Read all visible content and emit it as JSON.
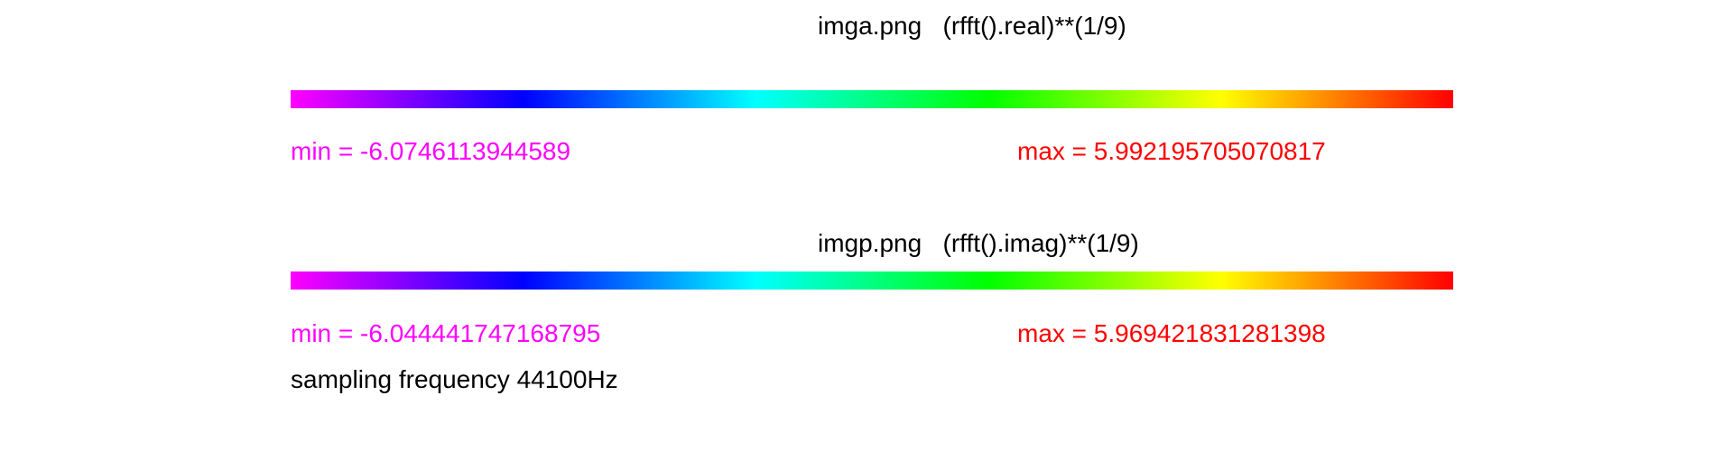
{
  "panels": [
    {
      "title": "imga.png   (rfft().real)**(1/9)",
      "min_label": "min = -6.0746113944589",
      "max_label": "max = 5.992195705070817"
    },
    {
      "title": "imgp.png   (rfft().imag)**(1/9)",
      "min_label": "min = -6.044441747168795",
      "max_label": "max = 5.969421831281398"
    }
  ],
  "footer": {
    "sampling_text": "sampling frequency 44100Hz"
  },
  "colors": {
    "min": "#ff00ff",
    "max": "#ff0000",
    "text": "#000000",
    "colormap": [
      "#ff00ff",
      "#0000ff",
      "#00ffff",
      "#00ff00",
      "#ffff00",
      "#ff0000"
    ]
  }
}
